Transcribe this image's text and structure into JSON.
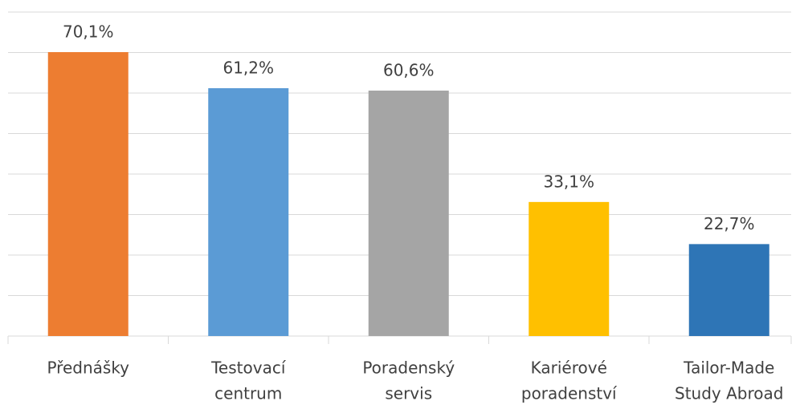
{
  "chart_data": {
    "type": "bar",
    "categories": [
      [
        "Přednášky"
      ],
      [
        "Testovací",
        "centrum"
      ],
      [
        "Poradenský",
        "servis"
      ],
      [
        "Kariérové",
        "poradenství"
      ],
      [
        "Tailor-Made",
        "Study Abroad"
      ]
    ],
    "values": [
      70.1,
      61.2,
      60.6,
      33.1,
      22.7
    ],
    "value_labels": [
      "70,1%",
      "61,2%",
      "60,6%",
      "33,1%",
      "22,7%"
    ],
    "colors": [
      "#ed7d31",
      "#5b9bd5",
      "#a5a5a5",
      "#ffc000",
      "#2e75b6"
    ],
    "ylim": [
      0,
      80
    ],
    "yticks": [
      0,
      10,
      20,
      30,
      40,
      50,
      60,
      70,
      80
    ],
    "grid": true
  }
}
